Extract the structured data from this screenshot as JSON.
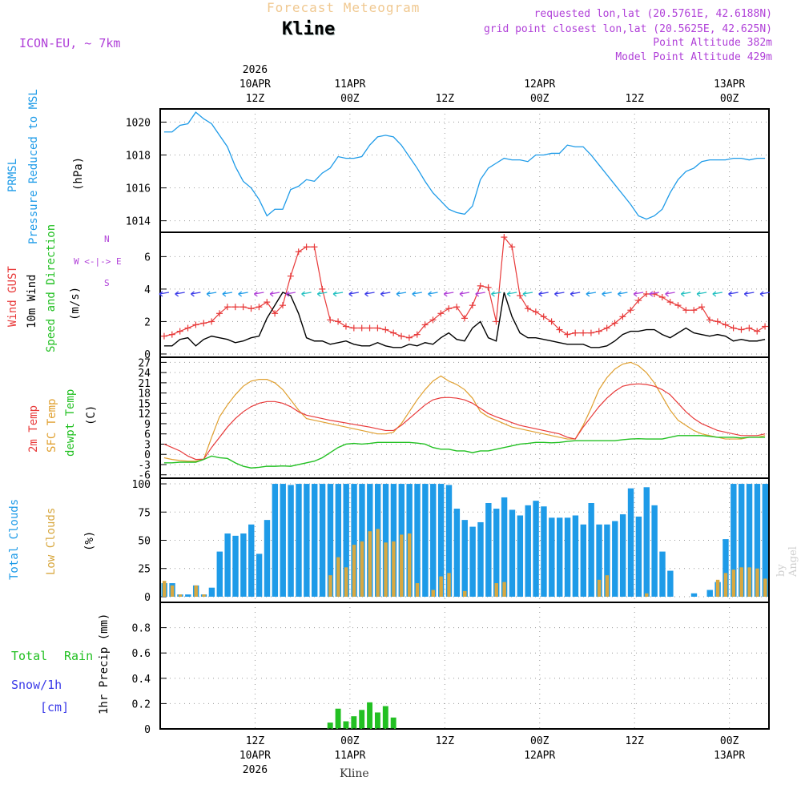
{
  "header": {
    "forecast_title": "Forecast Meteogram",
    "location": "Kline",
    "model": "ICON-EU, ~ 7km",
    "requested": "requested lon,lat (20.5761E, 42.6188N)",
    "grid_point": "grid point closest lon,lat (20.5625E, 42.625N)",
    "point_altitude": "Point Altitude 382m",
    "model_altitude": "Model Point Altitude 429m",
    "footer_location": "Kline",
    "watermark": "by Angel"
  },
  "time_axis": {
    "top": [
      {
        "hour": 12,
        "lines": [
          "2026",
          "10APR",
          "12Z"
        ]
      },
      {
        "hour": 24,
        "lines": [
          "11APR",
          "00Z"
        ]
      },
      {
        "hour": 36,
        "lines": [
          "12Z"
        ]
      },
      {
        "hour": 48,
        "lines": [
          "12APR",
          "00Z"
        ]
      },
      {
        "hour": 60,
        "lines": [
          "12Z"
        ]
      },
      {
        "hour": 72,
        "lines": [
          "13APR",
          "00Z"
        ]
      }
    ],
    "bottom": [
      {
        "hour": 12,
        "lines": [
          "12Z",
          "10APR",
          "2026"
        ]
      },
      {
        "hour": 24,
        "lines": [
          "00Z",
          "11APR"
        ]
      },
      {
        "hour": 36,
        "lines": [
          "12Z"
        ]
      },
      {
        "hour": 48,
        "lines": [
          "00Z",
          "12APR"
        ]
      },
      {
        "hour": 60,
        "lines": [
          "12Z"
        ]
      },
      {
        "hour": 72,
        "lines": [
          "00Z",
          "13APR"
        ]
      }
    ],
    "range_hours": [
      0,
      77
    ]
  },
  "panel_labels": {
    "pressure": [
      "PRMSL",
      "Pressure Reduced to MSL",
      "(hPa)"
    ],
    "wind": [
      "Wind GUST",
      "10m Wind",
      "Speed and Direction",
      "(m/s)"
    ],
    "compass": [
      "N",
      "W <-|-> E",
      "S"
    ],
    "temp": [
      "2m Temp",
      "SFC Temp",
      "dewpt Temp",
      "(C)"
    ],
    "clouds": [
      "Total Clouds",
      "Low Clouds",
      "(%)"
    ],
    "precip": [
      "Total",
      "Rain",
      "Snow/1h",
      "[cm]",
      "1hr Precip (mm)"
    ]
  },
  "colors": {
    "pressure": "#1e9be8",
    "gust": "#e83a3a",
    "wind": "#000000",
    "sfc_temp": "#e0a030",
    "dewpoint": "#22c022",
    "total_clouds": "#1e9be8",
    "low_clouds": "#d8a840",
    "rain": "#22c022",
    "snow": "#3a3ae8",
    "title": "#f0c890",
    "meta": "#b040d8"
  },
  "chart_data": [
    {
      "type": "line",
      "title": "PRMSL Pressure Reduced to MSL",
      "ylabel": "(hPa)",
      "ylim": [
        1013.3,
        1020.8
      ],
      "yticks": [
        1014,
        1016,
        1018,
        1020
      ],
      "hour_step": 1,
      "series": [
        {
          "name": "PRMSL",
          "values": [
            1019.4,
            1019.4,
            1019.8,
            1019.9,
            1020.6,
            1020.2,
            1019.9,
            1019.2,
            1018.5,
            1017.3,
            1016.4,
            1016,
            1015.3,
            1014.3,
            1014.7,
            1014.7,
            1015.9,
            1016.1,
            1016.5,
            1016.4,
            1016.9,
            1017.2,
            1017.9,
            1017.8,
            1017.8,
            1017.9,
            1018.6,
            1019.1,
            1019.2,
            1019.1,
            1018.6,
            1017.9,
            1017.2,
            1016.4,
            1015.7,
            1015.2,
            1014.7,
            1014.5,
            1014.4,
            1014.9,
            1016.5,
            1017.2,
            1017.5,
            1017.8,
            1017.7,
            1017.7,
            1017.6,
            1018.0,
            1018.0,
            1018.1,
            1018.1,
            1018.6,
            1018.5,
            1018.5,
            1018.0,
            1017.4,
            1016.8,
            1016.2,
            1015.6,
            1015.0,
            1014.3,
            1014.1,
            1014.3,
            1014.7,
            1015.7,
            1016.5,
            1017.0,
            1017.2,
            1017.6,
            1017.7,
            1017.7,
            1017.7,
            1017.8,
            1017.8,
            1017.7,
            1017.8,
            1017.8
          ]
        }
      ]
    },
    {
      "type": "line",
      "title": "Wind GUST / 10m Wind Speed and Direction",
      "ylabel": "(m/s)",
      "ylim": [
        -0.2,
        7.5
      ],
      "yticks": [
        0,
        2,
        4,
        6
      ],
      "hour_step": 1,
      "series": [
        {
          "name": "Wind GUST",
          "values": [
            1.1,
            1.2,
            1.4,
            1.6,
            1.8,
            1.9,
            2.0,
            2.5,
            2.9,
            2.9,
            2.9,
            2.8,
            2.9,
            3.2,
            2.5,
            3.0,
            4.8,
            6.3,
            6.6,
            6.6,
            4.0,
            2.1,
            2.0,
            1.7,
            1.6,
            1.6,
            1.6,
            1.6,
            1.5,
            1.3,
            1.1,
            1.0,
            1.2,
            1.8,
            2.1,
            2.5,
            2.8,
            2.9,
            2.2,
            3.0,
            4.2,
            4.1,
            2.0,
            7.2,
            6.6,
            3.6,
            2.8,
            2.6,
            2.3,
            2.0,
            1.5,
            1.2,
            1.3,
            1.3,
            1.3,
            1.4,
            1.6,
            1.9,
            2.3,
            2.7,
            3.3,
            3.7,
            3.7,
            3.5,
            3.2,
            3.0,
            2.7,
            2.7,
            2.9,
            2.1,
            2.0,
            1.8,
            1.6,
            1.5,
            1.6,
            1.4,
            1.7
          ]
        },
        {
          "name": "10m Wind",
          "values": [
            0.5,
            0.5,
            0.9,
            1.0,
            0.5,
            0.9,
            1.1,
            1.0,
            0.9,
            0.7,
            0.8,
            1.0,
            1.1,
            2.2,
            3.0,
            3.8,
            3.6,
            2.5,
            1.0,
            0.8,
            0.8,
            0.6,
            0.7,
            0.8,
            0.6,
            0.5,
            0.5,
            0.7,
            0.5,
            0.4,
            0.4,
            0.6,
            0.5,
            0.7,
            0.6,
            1.0,
            1.3,
            0.9,
            0.8,
            1.6,
            2.0,
            1.0,
            0.8,
            3.8,
            2.3,
            1.3,
            1.0,
            1.0,
            0.9,
            0.8,
            0.7,
            0.6,
            0.6,
            0.6,
            0.4,
            0.4,
            0.5,
            0.8,
            1.2,
            1.4,
            1.4,
            1.5,
            1.5,
            1.2,
            1.0,
            1.3,
            1.6,
            1.3,
            1.2,
            1.1,
            1.2,
            1.1,
            0.8,
            0.9,
            0.8,
            0.8,
            0.9
          ]
        }
      ]
    },
    {
      "type": "line",
      "title": "2m Temp / SFC Temp / dewpt Temp",
      "ylabel": "(C)",
      "ylim": [
        -7,
        28.5
      ],
      "yticks": [
        -6,
        -3,
        0,
        3,
        6,
        9,
        12,
        15,
        18,
        21,
        24,
        27
      ],
      "hour_step": 1,
      "series": [
        {
          "name": "2m Temp",
          "values": [
            3.0,
            2.0,
            1.0,
            -0.5,
            -1.5,
            -1.4,
            2.0,
            5.0,
            8.0,
            10.5,
            12.5,
            14.0,
            15.0,
            15.5,
            15.5,
            15.0,
            14.0,
            12.5,
            11.5,
            11.0,
            10.5,
            10.0,
            9.6,
            9.2,
            8.8,
            8.4,
            8.0,
            7.5,
            7.0,
            7.0,
            8.5,
            10.5,
            12.5,
            14.5,
            16.0,
            16.6,
            16.7,
            16.5,
            16.0,
            15.0,
            13.5,
            12.0,
            11.0,
            10.2,
            9.3,
            8.5,
            8.0,
            7.5,
            7.0,
            6.5,
            6.0,
            5.0,
            4.5,
            8.0,
            11.0,
            14.0,
            16.5,
            18.5,
            20.0,
            20.5,
            20.7,
            20.5,
            20.0,
            19.0,
            17.5,
            15.0,
            12.5,
            10.5,
            9.0,
            8.0,
            7.0,
            6.5,
            6.0,
            5.5,
            5.5,
            5.5,
            6.0
          ]
        },
        {
          "name": "SFC Temp",
          "values": [
            -1.0,
            -1.5,
            -1.8,
            -2.0,
            -2.0,
            -1.5,
            5.0,
            11.0,
            14.5,
            17.5,
            20.0,
            21.5,
            22.0,
            22.0,
            21.0,
            19.0,
            16.0,
            13.0,
            10.5,
            10.0,
            9.5,
            9.0,
            8.5,
            8.0,
            7.5,
            7.0,
            6.5,
            6.0,
            6.0,
            6.5,
            9.0,
            12.5,
            16.0,
            19.0,
            21.5,
            23.0,
            21.5,
            20.5,
            19.0,
            16.5,
            12.5,
            11.0,
            10.0,
            9.0,
            8.0,
            7.5,
            7.0,
            6.5,
            6.0,
            5.5,
            5.0,
            4.5,
            4.5,
            8.5,
            13.5,
            19.0,
            22.5,
            25.0,
            26.5,
            27.0,
            26.0,
            24.0,
            21.0,
            17.0,
            13.0,
            10.0,
            8.5,
            7.0,
            6.0,
            5.5,
            5.0,
            4.5,
            4.5,
            4.5,
            5.0,
            5.0,
            5.5
          ]
        },
        {
          "name": "dewpt Temp",
          "values": [
            -2.5,
            -2.5,
            -2.3,
            -2.3,
            -2.3,
            -1.5,
            -0.5,
            -1.0,
            -1.2,
            -2.5,
            -3.5,
            -4.0,
            -3.8,
            -3.5,
            -3.5,
            -3.4,
            -3.5,
            -3.0,
            -2.5,
            -2.0,
            -1.0,
            0.5,
            2.0,
            3.0,
            3.2,
            3.0,
            3.2,
            3.5,
            3.5,
            3.5,
            3.5,
            3.5,
            3.3,
            3.0,
            2.0,
            1.5,
            1.5,
            1.0,
            1.0,
            0.5,
            1.0,
            1.0,
            1.5,
            2.0,
            2.5,
            3.0,
            3.2,
            3.5,
            3.5,
            3.4,
            3.5,
            3.8,
            4.0,
            4.0,
            4.0,
            4.0,
            4.0,
            4.0,
            4.3,
            4.5,
            4.6,
            4.5,
            4.5,
            4.5,
            5.0,
            5.5,
            5.5,
            5.5,
            5.5,
            5.3,
            5.0,
            5.0,
            5.0,
            4.8,
            5.0,
            5.0,
            5.0
          ]
        }
      ]
    },
    {
      "type": "bar",
      "title": "Total Clouds / Low Clouds",
      "ylabel": "(%)",
      "ylim": [
        -5,
        105
      ],
      "yticks": [
        0,
        25,
        50,
        75,
        100
      ],
      "hour_step": 1,
      "series": [
        {
          "name": "Total Clouds",
          "values": [
            12,
            12,
            2,
            2,
            10,
            2,
            8,
            40,
            56,
            54,
            56,
            64,
            38,
            68,
            100,
            100,
            99,
            100,
            100,
            100,
            100,
            100,
            100,
            100,
            100,
            100,
            100,
            100,
            100,
            100,
            100,
            100,
            100,
            100,
            100,
            100,
            99,
            78,
            68,
            62,
            66,
            83,
            78,
            88,
            77,
            72,
            81,
            85,
            80,
            70,
            70,
            70,
            72,
            64,
            83,
            64,
            64,
            67,
            73,
            96,
            71,
            97,
            81,
            40,
            23,
            0,
            0,
            3,
            0,
            6,
            13,
            51,
            100,
            100,
            100,
            100,
            100
          ]
        },
        {
          "name": "Low Clouds",
          "values": [
            14,
            10,
            2,
            0,
            10,
            2,
            0,
            0,
            0,
            0,
            0,
            0,
            0,
            0,
            0,
            0,
            0,
            0,
            0,
            0,
            0,
            19,
            35,
            26,
            46,
            49,
            58,
            60,
            48,
            49,
            55,
            56,
            12,
            0,
            6,
            18,
            21,
            0,
            5,
            0,
            0,
            0,
            12,
            13,
            0,
            0,
            0,
            0,
            0,
            0,
            0,
            0,
            0,
            0,
            0,
            15,
            19,
            0,
            0,
            0,
            0,
            3,
            0,
            0,
            0,
            0,
            0,
            0,
            0,
            0,
            15,
            21,
            24,
            26,
            26,
            25,
            16
          ]
        }
      ]
    },
    {
      "type": "bar",
      "title": "Total Rain / Snow 1h",
      "ylabel": "1hr Precip (mm)",
      "ylim": [
        0,
        1.0
      ],
      "yticks": [
        0,
        0.2,
        0.4,
        0.6,
        0.8
      ],
      "hour_step": 1,
      "series": [
        {
          "name": "Total Rain",
          "values": [
            0,
            0,
            0,
            0,
            0,
            0,
            0,
            0,
            0,
            0,
            0,
            0,
            0,
            0,
            0,
            0,
            0,
            0,
            0,
            0,
            0,
            0.05,
            0.16,
            0.06,
            0.1,
            0.15,
            0.21,
            0.13,
            0.18,
            0.09,
            0,
            0,
            0,
            0,
            0,
            0,
            0,
            0,
            0,
            0,
            0,
            0,
            0,
            0,
            0,
            0,
            0,
            0,
            0,
            0,
            0,
            0,
            0,
            0,
            0,
            0,
            0,
            0,
            0,
            0,
            0,
            0,
            0,
            0,
            0,
            0,
            0,
            0,
            0,
            0,
            0,
            0,
            0,
            0,
            0,
            0,
            0
          ]
        },
        {
          "name": "Snow/1h",
          "values": []
        }
      ]
    }
  ]
}
